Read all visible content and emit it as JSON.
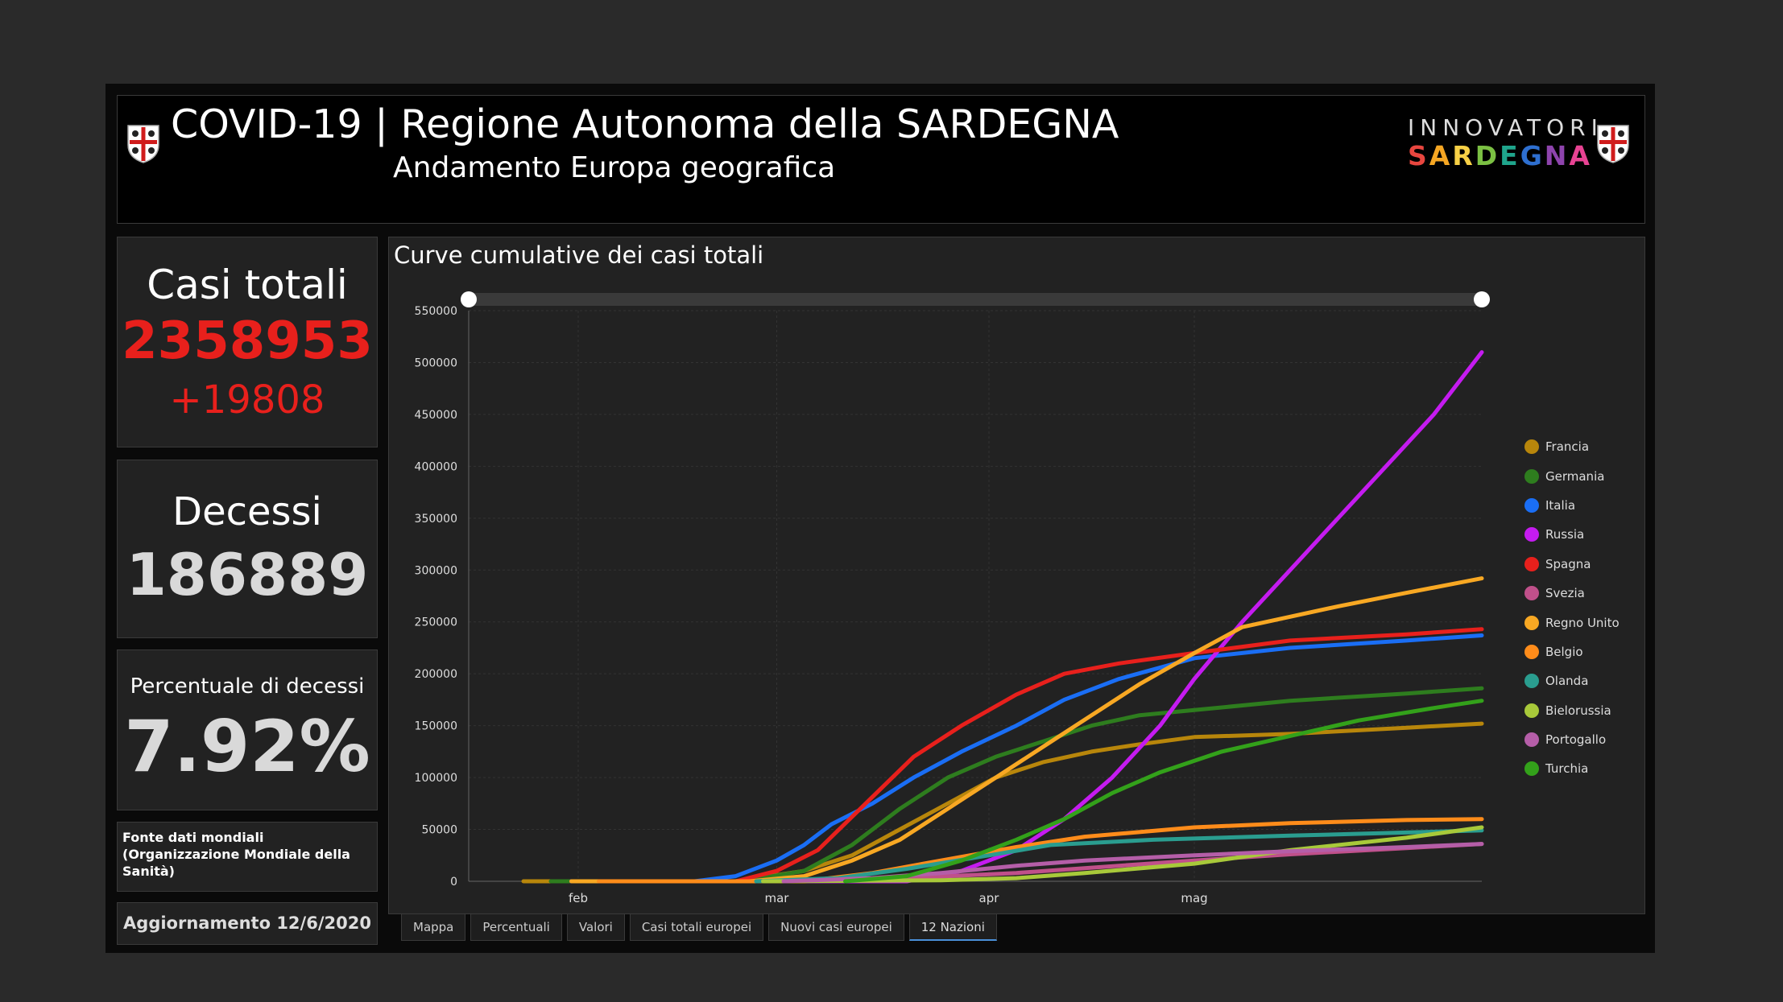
{
  "header": {
    "title": "COVID-19 | Regione Autonoma della SARDEGNA",
    "subtitle": "Andamento Europa geografica",
    "brand_top": "INNOVATORI",
    "brand_bottom": "SARDEGNA",
    "brand_colors": [
      "#e8463f",
      "#f5a623",
      "#f7d046",
      "#7bc043",
      "#1fa58c",
      "#2e6fd0",
      "#8e44ad",
      "#e84393"
    ]
  },
  "kpis": {
    "cases_label": "Casi totali",
    "cases_value": "2358953",
    "cases_delta": "+19808",
    "deaths_label": "Decessi",
    "deaths_value": "186889",
    "pct_label": "Percentuale di decessi",
    "pct_value": "7.92%",
    "source": "Fonte dati mondiali (Organizzazione Mondiale della Sanità)",
    "update": "Aggiornamento 12/6/2020"
  },
  "colors": {
    "accent_red": "#e8201c",
    "kpi_text": "#d9d9d9"
  },
  "tabs": [
    {
      "label": "Mappa",
      "active": false
    },
    {
      "label": "Percentuali",
      "active": false
    },
    {
      "label": "Valori",
      "active": false
    },
    {
      "label": "Casi totali europei",
      "active": false
    },
    {
      "label": "Nuovi casi europei",
      "active": false
    },
    {
      "label": "12 Nazioni",
      "active": true
    }
  ],
  "chart_data": {
    "type": "line",
    "title": "Curve cumulative dei casi totali",
    "xlabel": "",
    "ylabel": "",
    "x_start": "2020-01-16",
    "x_end": "2020-06-12",
    "x_ticks": [
      {
        "label": "feb",
        "date": "2020-02-01"
      },
      {
        "label": "mar",
        "date": "2020-03-01"
      },
      {
        "label": "apr",
        "date": "2020-04-01"
      },
      {
        "label": "mag",
        "date": "2020-05-01"
      }
    ],
    "ylim": [
      0,
      550000
    ],
    "y_ticks": [
      0,
      50000,
      100000,
      150000,
      200000,
      250000,
      300000,
      350000,
      400000,
      450000,
      500000,
      550000
    ],
    "grid": true,
    "legend_position": "right",
    "series": [
      {
        "name": "Francia",
        "color": "#b8860b",
        "points": [
          [
            "2020-01-24",
            0
          ],
          [
            "2020-02-24",
            0
          ],
          [
            "2020-03-05",
            10000
          ],
          [
            "2020-03-12",
            25000
          ],
          [
            "2020-03-19",
            50000
          ],
          [
            "2020-03-26",
            75000
          ],
          [
            "2020-04-02",
            100000
          ],
          [
            "2020-04-09",
            115000
          ],
          [
            "2020-04-16",
            125000
          ],
          [
            "2020-04-23",
            132000
          ],
          [
            "2020-05-01",
            139000
          ],
          [
            "2020-05-15",
            142000
          ],
          [
            "2020-06-01",
            148000
          ],
          [
            "2020-06-12",
            152000
          ]
        ]
      },
      {
        "name": "Germania",
        "color": "#2e7d1e",
        "points": [
          [
            "2020-01-28",
            0
          ],
          [
            "2020-02-25",
            0
          ],
          [
            "2020-03-05",
            10000
          ],
          [
            "2020-03-12",
            35000
          ],
          [
            "2020-03-19",
            70000
          ],
          [
            "2020-03-26",
            100000
          ],
          [
            "2020-04-02",
            120000
          ],
          [
            "2020-04-09",
            135000
          ],
          [
            "2020-04-16",
            150000
          ],
          [
            "2020-04-23",
            160000
          ],
          [
            "2020-05-01",
            165000
          ],
          [
            "2020-05-15",
            174000
          ],
          [
            "2020-06-01",
            181000
          ],
          [
            "2020-06-12",
            186000
          ]
        ]
      },
      {
        "name": "Italia",
        "color": "#1a6ef5",
        "points": [
          [
            "2020-01-31",
            0
          ],
          [
            "2020-02-18",
            0
          ],
          [
            "2020-02-24",
            5000
          ],
          [
            "2020-03-01",
            20000
          ],
          [
            "2020-03-05",
            35000
          ],
          [
            "2020-03-09",
            55000
          ],
          [
            "2020-03-15",
            75000
          ],
          [
            "2020-03-21",
            100000
          ],
          [
            "2020-03-28",
            125000
          ],
          [
            "2020-04-05",
            150000
          ],
          [
            "2020-04-12",
            175000
          ],
          [
            "2020-04-20",
            195000
          ],
          [
            "2020-05-01",
            215000
          ],
          [
            "2020-05-15",
            225000
          ],
          [
            "2020-06-01",
            232000
          ],
          [
            "2020-06-12",
            237000
          ]
        ]
      },
      {
        "name": "Russia",
        "color": "#c51bf0",
        "points": [
          [
            "2020-01-31",
            0
          ],
          [
            "2020-03-20",
            0
          ],
          [
            "2020-03-28",
            10000
          ],
          [
            "2020-04-05",
            30000
          ],
          [
            "2020-04-12",
            60000
          ],
          [
            "2020-04-19",
            100000
          ],
          [
            "2020-04-26",
            150000
          ],
          [
            "2020-05-01",
            195000
          ],
          [
            "2020-05-08",
            250000
          ],
          [
            "2020-05-15",
            300000
          ],
          [
            "2020-05-22",
            350000
          ],
          [
            "2020-05-29",
            400000
          ],
          [
            "2020-06-05",
            450000
          ],
          [
            "2020-06-12",
            510000
          ]
        ]
      },
      {
        "name": "Spagna",
        "color": "#e8201c",
        "points": [
          [
            "2020-02-01",
            0
          ],
          [
            "2020-02-24",
            0
          ],
          [
            "2020-03-01",
            10000
          ],
          [
            "2020-03-07",
            30000
          ],
          [
            "2020-03-14",
            75000
          ],
          [
            "2020-03-21",
            120000
          ],
          [
            "2020-03-28",
            150000
          ],
          [
            "2020-04-05",
            180000
          ],
          [
            "2020-04-12",
            200000
          ],
          [
            "2020-04-20",
            210000
          ],
          [
            "2020-05-01",
            220000
          ],
          [
            "2020-05-15",
            232000
          ],
          [
            "2020-06-01",
            238000
          ],
          [
            "2020-06-12",
            243000
          ]
        ]
      },
      {
        "name": "Svezia",
        "color": "#c0508a",
        "points": [
          [
            "2020-01-31",
            0
          ],
          [
            "2020-03-05",
            0
          ],
          [
            "2020-03-20",
            3000
          ],
          [
            "2020-04-05",
            8000
          ],
          [
            "2020-04-20",
            15000
          ],
          [
            "2020-05-01",
            20000
          ],
          [
            "2020-05-15",
            26000
          ],
          [
            "2020-06-01",
            32000
          ],
          [
            "2020-06-12",
            36000
          ]
        ]
      },
      {
        "name": "Regno Unito",
        "color": "#f8a823",
        "points": [
          [
            "2020-01-31",
            0
          ],
          [
            "2020-02-26",
            0
          ],
          [
            "2020-03-05",
            5000
          ],
          [
            "2020-03-12",
            20000
          ],
          [
            "2020-03-19",
            40000
          ],
          [
            "2020-03-26",
            70000
          ],
          [
            "2020-04-02",
            100000
          ],
          [
            "2020-04-09",
            130000
          ],
          [
            "2020-04-16",
            160000
          ],
          [
            "2020-04-23",
            190000
          ],
          [
            "2020-05-01",
            220000
          ],
          [
            "2020-05-08",
            245000
          ],
          [
            "2020-05-15",
            255000
          ],
          [
            "2020-05-22",
            265000
          ],
          [
            "2020-06-01",
            278000
          ],
          [
            "2020-06-12",
            292000
          ]
        ]
      },
      {
        "name": "Belgio",
        "color": "#ff8c1a",
        "points": [
          [
            "2020-02-04",
            0
          ],
          [
            "2020-03-05",
            0
          ],
          [
            "2020-03-15",
            8000
          ],
          [
            "2020-03-25",
            20000
          ],
          [
            "2020-04-05",
            33000
          ],
          [
            "2020-04-15",
            43000
          ],
          [
            "2020-05-01",
            52000
          ],
          [
            "2020-05-15",
            56000
          ],
          [
            "2020-06-01",
            59000
          ],
          [
            "2020-06-12",
            60000
          ]
        ]
      },
      {
        "name": "Olanda",
        "color": "#2a9d8f",
        "points": [
          [
            "2020-02-27",
            0
          ],
          [
            "2020-03-10",
            3000
          ],
          [
            "2020-03-20",
            12000
          ],
          [
            "2020-04-01",
            25000
          ],
          [
            "2020-04-10",
            35000
          ],
          [
            "2020-04-25",
            40000
          ],
          [
            "2020-05-15",
            44000
          ],
          [
            "2020-06-01",
            47000
          ],
          [
            "2020-06-12",
            49000
          ]
        ]
      },
      {
        "name": "Bielorussia",
        "color": "#a8c93a",
        "points": [
          [
            "2020-02-28",
            0
          ],
          [
            "2020-03-25",
            1000
          ],
          [
            "2020-04-05",
            3000
          ],
          [
            "2020-04-15",
            8000
          ],
          [
            "2020-05-01",
            17000
          ],
          [
            "2020-05-15",
            30000
          ],
          [
            "2020-06-01",
            42000
          ],
          [
            "2020-06-12",
            52000
          ]
        ]
      },
      {
        "name": "Portogallo",
        "color": "#b55ea8",
        "points": [
          [
            "2020-03-02",
            0
          ],
          [
            "2020-03-15",
            3000
          ],
          [
            "2020-03-25",
            8000
          ],
          [
            "2020-04-05",
            15000
          ],
          [
            "2020-04-15",
            20000
          ],
          [
            "2020-05-01",
            25000
          ],
          [
            "2020-05-15",
            29000
          ],
          [
            "2020-06-01",
            33000
          ],
          [
            "2020-06-12",
            36000
          ]
        ]
      },
      {
        "name": "Turchia",
        "color": "#33a11a",
        "points": [
          [
            "2020-03-11",
            0
          ],
          [
            "2020-03-20",
            5000
          ],
          [
            "2020-03-28",
            20000
          ],
          [
            "2020-04-05",
            40000
          ],
          [
            "2020-04-12",
            60000
          ],
          [
            "2020-04-19",
            85000
          ],
          [
            "2020-04-26",
            105000
          ],
          [
            "2020-05-05",
            125000
          ],
          [
            "2020-05-15",
            140000
          ],
          [
            "2020-05-25",
            155000
          ],
          [
            "2020-06-05",
            167000
          ],
          [
            "2020-06-12",
            174000
          ]
        ]
      }
    ]
  }
}
